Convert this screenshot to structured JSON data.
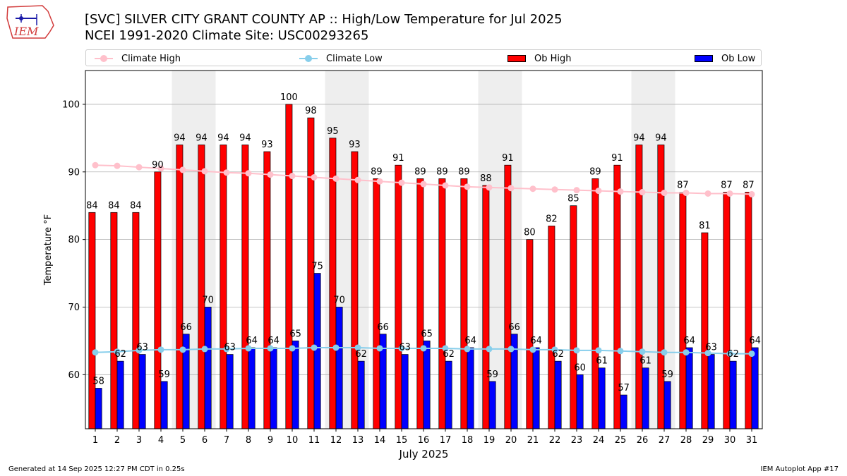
{
  "header": {
    "title_line1": "[SVC] SILVER CITY GRANT COUNTY AP :: High/Low Temperature for Jul 2025",
    "title_line2": "NCEI 1991-2020 Climate Site: USC00293265",
    "logo_text": "IEM"
  },
  "legend": {
    "climate_high": "Climate High",
    "climate_low": "Climate Low",
    "ob_high": "Ob High",
    "ob_low": "Ob Low"
  },
  "footer": {
    "generated": "Generated at 14 Sep 2025 12:27 PM CDT in 0.25s",
    "app": "IEM Autoplot App #17"
  },
  "colors": {
    "ob_high": "#ff0000",
    "ob_low": "#0000ff",
    "climate_high": "#ffc0cb",
    "climate_low": "#87ceeb",
    "weekend_shade": "#eeeeee",
    "grid": "#b0b0b0"
  },
  "chart_data": {
    "type": "bar",
    "xlabel": "July 2025",
    "ylabel": "Temperature °F",
    "ylim": [
      52,
      105
    ],
    "yticks": [
      60,
      70,
      80,
      90,
      100
    ],
    "grid": "horizontal",
    "legend_placement": "top",
    "categories": [
      "1",
      "2",
      "3",
      "4",
      "5",
      "6",
      "7",
      "8",
      "9",
      "10",
      "11",
      "12",
      "13",
      "14",
      "15",
      "16",
      "17",
      "18",
      "19",
      "20",
      "21",
      "22",
      "23",
      "24",
      "25",
      "26",
      "27",
      "28",
      "29",
      "30",
      "31"
    ],
    "shaded_days": [
      5,
      6,
      12,
      13,
      19,
      20,
      26,
      27
    ],
    "series": [
      {
        "name": "Ob High",
        "type": "bar",
        "values": [
          84,
          84,
          84,
          90,
          94,
          94,
          94,
          94,
          93,
          100,
          98,
          95,
          93,
          89,
          91,
          89,
          89,
          89,
          88,
          91,
          80,
          82,
          85,
          89,
          91,
          94,
          94,
          87,
          81,
          87,
          87
        ]
      },
      {
        "name": "Ob Low",
        "type": "bar",
        "values": [
          58,
          62,
          63,
          59,
          66,
          70,
          63,
          64,
          64,
          65,
          75,
          70,
          62,
          66,
          63,
          65,
          62,
          64,
          59,
          66,
          64,
          62,
          60,
          61,
          57,
          61,
          59,
          64,
          63,
          62,
          64
        ]
      },
      {
        "name": "Climate High",
        "type": "line",
        "values": [
          91.0,
          90.9,
          90.7,
          90.5,
          90.3,
          90.1,
          89.9,
          89.8,
          89.6,
          89.4,
          89.2,
          89.0,
          88.8,
          88.6,
          88.4,
          88.2,
          88.0,
          87.8,
          87.7,
          87.6,
          87.5,
          87.4,
          87.3,
          87.2,
          87.1,
          87.0,
          86.9,
          86.9,
          86.8,
          86.8,
          86.7
        ]
      },
      {
        "name": "Climate Low",
        "type": "line",
        "values": [
          63.3,
          63.4,
          63.6,
          63.7,
          63.7,
          63.8,
          63.8,
          63.9,
          63.9,
          63.9,
          64.0,
          64.0,
          64.0,
          63.9,
          63.9,
          63.9,
          63.9,
          63.8,
          63.8,
          63.8,
          63.7,
          63.7,
          63.6,
          63.6,
          63.5,
          63.4,
          63.3,
          63.3,
          63.2,
          63.1,
          63.1
        ]
      }
    ]
  }
}
